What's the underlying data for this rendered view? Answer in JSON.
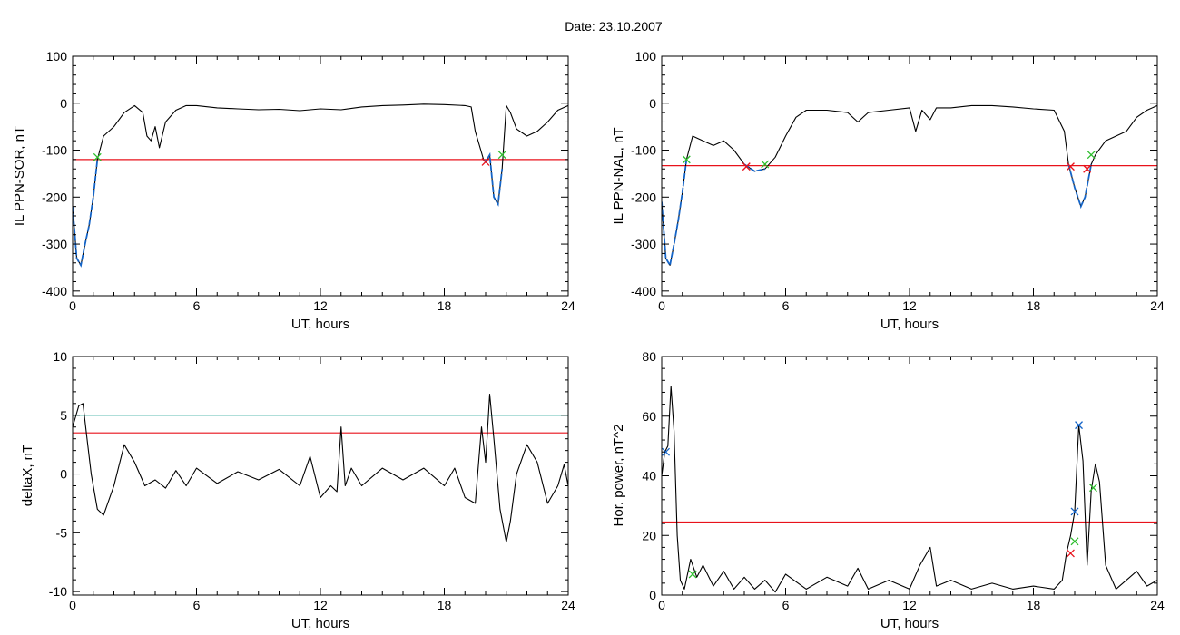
{
  "figure": {
    "title": "Date:  23.10.2007"
  },
  "colors": {
    "signal": "#000000",
    "threshold": "#e8121b",
    "threshold2": "#2aa79a",
    "highlight": "#1565c8",
    "onset_marker": "#e8121b",
    "end_marker": "#2cbd2c",
    "peak_marker": "#1565c8"
  },
  "chart_data": [
    {
      "id": "il-ppn-sor",
      "type": "line",
      "xlabel": "UT, hours",
      "ylabel": "IL PPN-SOR, nT",
      "xlim": [
        0,
        24
      ],
      "ylim": [
        -410,
        100
      ],
      "xticks": [
        0,
        6,
        12,
        18,
        24
      ],
      "yticks": [
        100,
        0,
        -100,
        -200,
        -300,
        -400
      ],
      "thresholds": [
        {
          "y": -120,
          "color": "#e8121b"
        }
      ],
      "series": [
        {
          "points": [
            [
              0,
              -220
            ],
            [
              0.2,
              -330
            ],
            [
              0.4,
              -345
            ],
            [
              0.6,
              -300
            ],
            [
              0.8,
              -260
            ],
            [
              1.0,
              -200
            ],
            [
              1.2,
              -120
            ],
            [
              1.5,
              -70
            ],
            [
              2.0,
              -50
            ],
            [
              2.5,
              -20
            ],
            [
              3.0,
              -5
            ],
            [
              3.4,
              -20
            ],
            [
              3.6,
              -70
            ],
            [
              3.8,
              -80
            ],
            [
              4.0,
              -50
            ],
            [
              4.2,
              -95
            ],
            [
              4.5,
              -40
            ],
            [
              5.0,
              -15
            ],
            [
              5.5,
              -5
            ],
            [
              6,
              -5
            ],
            [
              7,
              -10
            ],
            [
              8,
              -12
            ],
            [
              9,
              -14
            ],
            [
              10,
              -13
            ],
            [
              11,
              -16
            ],
            [
              12,
              -12
            ],
            [
              13,
              -14
            ],
            [
              14,
              -8
            ],
            [
              15,
              -5
            ],
            [
              16,
              -4
            ],
            [
              17,
              -2
            ],
            [
              18,
              -3
            ],
            [
              19,
              -5
            ],
            [
              19.3,
              -8
            ],
            [
              19.5,
              -60
            ],
            [
              19.7,
              -90
            ],
            [
              19.9,
              -120
            ],
            [
              20.0,
              -125
            ],
            [
              20.2,
              -110
            ],
            [
              20.4,
              -200
            ],
            [
              20.6,
              -215
            ],
            [
              20.8,
              -140
            ],
            [
              21.0,
              -5
            ],
            [
              21.2,
              -20
            ],
            [
              21.5,
              -55
            ],
            [
              22.0,
              -70
            ],
            [
              22.5,
              -60
            ],
            [
              23.0,
              -40
            ],
            [
              23.5,
              -15
            ],
            [
              24,
              -5
            ]
          ]
        }
      ],
      "highlight": [
        {
          "points": [
            [
              0,
              -220
            ],
            [
              0.2,
              -330
            ],
            [
              0.4,
              -345
            ],
            [
              0.6,
              -300
            ],
            [
              0.8,
              -260
            ],
            [
              1.0,
              -200
            ],
            [
              1.2,
              -120
            ]
          ]
        },
        {
          "points": [
            [
              19.9,
              -120
            ],
            [
              20.0,
              -125
            ],
            [
              20.2,
              -110
            ],
            [
              20.4,
              -200
            ],
            [
              20.6,
              -215
            ],
            [
              20.8,
              -140
            ]
          ]
        }
      ],
      "markers": [
        {
          "x": 1.2,
          "y": -115,
          "color": "#2cbd2c"
        },
        {
          "x": 20.0,
          "y": -125,
          "color": "#e8121b"
        },
        {
          "x": 20.8,
          "y": -110,
          "color": "#2cbd2c"
        }
      ]
    },
    {
      "id": "il-ppn-nal",
      "type": "line",
      "xlabel": "UT, hours",
      "ylabel": "IL PPN-NAL, nT",
      "xlim": [
        0,
        24
      ],
      "ylim": [
        -410,
        100
      ],
      "xticks": [
        0,
        6,
        12,
        18,
        24
      ],
      "yticks": [
        100,
        0,
        -100,
        -200,
        -300,
        -400
      ],
      "thresholds": [
        {
          "y": -133,
          "color": "#e8121b"
        }
      ],
      "series": [
        {
          "points": [
            [
              0,
              -210
            ],
            [
              0.2,
              -330
            ],
            [
              0.4,
              -345
            ],
            [
              0.6,
              -300
            ],
            [
              0.8,
              -250
            ],
            [
              1.0,
              -190
            ],
            [
              1.2,
              -120
            ],
            [
              1.5,
              -70
            ],
            [
              2.0,
              -80
            ],
            [
              2.5,
              -90
            ],
            [
              3.0,
              -80
            ],
            [
              3.5,
              -100
            ],
            [
              4.0,
              -130
            ],
            [
              4.5,
              -145
            ],
            [
              5.0,
              -140
            ],
            [
              5.5,
              -115
            ],
            [
              6.0,
              -70
            ],
            [
              6.5,
              -30
            ],
            [
              7,
              -15
            ],
            [
              8,
              -15
            ],
            [
              9,
              -20
            ],
            [
              9.5,
              -40
            ],
            [
              10,
              -20
            ],
            [
              11,
              -15
            ],
            [
              12,
              -10
            ],
            [
              12.3,
              -60
            ],
            [
              12.6,
              -15
            ],
            [
              13,
              -35
            ],
            [
              13.3,
              -10
            ],
            [
              14,
              -10
            ],
            [
              15,
              -5
            ],
            [
              16,
              -5
            ],
            [
              17,
              -8
            ],
            [
              18,
              -12
            ],
            [
              19,
              -15
            ],
            [
              19.5,
              -60
            ],
            [
              19.7,
              -130
            ],
            [
              20.0,
              -180
            ],
            [
              20.3,
              -220
            ],
            [
              20.5,
              -200
            ],
            [
              20.8,
              -130
            ],
            [
              21.0,
              -110
            ],
            [
              21.5,
              -80
            ],
            [
              22.0,
              -70
            ],
            [
              22.5,
              -60
            ],
            [
              23.0,
              -30
            ],
            [
              23.5,
              -15
            ],
            [
              24,
              -5
            ]
          ]
        }
      ],
      "highlight": [
        {
          "points": [
            [
              0,
              -210
            ],
            [
              0.2,
              -330
            ],
            [
              0.4,
              -345
            ],
            [
              0.6,
              -300
            ],
            [
              0.8,
              -250
            ],
            [
              1.0,
              -190
            ],
            [
              1.2,
              -120
            ]
          ]
        },
        {
          "points": [
            [
              4.0,
              -130
            ],
            [
              4.5,
              -145
            ],
            [
              5.0,
              -140
            ]
          ]
        },
        {
          "points": [
            [
              19.7,
              -130
            ],
            [
              20.0,
              -180
            ],
            [
              20.3,
              -220
            ],
            [
              20.5,
              -200
            ],
            [
              20.8,
              -130
            ]
          ]
        }
      ],
      "markers": [
        {
          "x": 1.2,
          "y": -120,
          "color": "#2cbd2c"
        },
        {
          "x": 4.1,
          "y": -135,
          "color": "#e8121b"
        },
        {
          "x": 5.0,
          "y": -130,
          "color": "#2cbd2c"
        },
        {
          "x": 19.8,
          "y": -135,
          "color": "#e8121b"
        },
        {
          "x": 20.6,
          "y": -140,
          "color": "#e8121b"
        },
        {
          "x": 20.8,
          "y": -110,
          "color": "#2cbd2c"
        }
      ]
    },
    {
      "id": "deltax",
      "type": "line",
      "xlabel": "UT, hours",
      "ylabel": "deltaX, nT",
      "xlim": [
        0,
        24
      ],
      "ylim": [
        -10.3,
        10
      ],
      "xticks": [
        0,
        6,
        12,
        18,
        24
      ],
      "yticks": [
        10,
        5,
        0,
        -5,
        -10
      ],
      "thresholds": [
        {
          "y": 5.0,
          "color": "#2aa79a"
        },
        {
          "y": 3.5,
          "color": "#e8121b"
        }
      ],
      "series": [
        {
          "points": [
            [
              0,
              4
            ],
            [
              0.3,
              5.8
            ],
            [
              0.5,
              6
            ],
            [
              0.7,
              3
            ],
            [
              0.9,
              0
            ],
            [
              1.2,
              -3
            ],
            [
              1.5,
              -3.5
            ],
            [
              2.0,
              -1
            ],
            [
              2.5,
              2.5
            ],
            [
              3.0,
              1
            ],
            [
              3.5,
              -1
            ],
            [
              4.0,
              -0.5
            ],
            [
              4.5,
              -1.2
            ],
            [
              5.0,
              0.3
            ],
            [
              5.5,
              -1
            ],
            [
              6.0,
              0.5
            ],
            [
              7,
              -0.8
            ],
            [
              8,
              0.2
            ],
            [
              9,
              -0.5
            ],
            [
              10,
              0.4
            ],
            [
              11,
              -1
            ],
            [
              11.5,
              1.5
            ],
            [
              12,
              -2
            ],
            [
              12.5,
              -1
            ],
            [
              12.8,
              -1.5
            ],
            [
              13.0,
              4
            ],
            [
              13.2,
              -1
            ],
            [
              13.5,
              0.5
            ],
            [
              14,
              -1
            ],
            [
              15,
              0.5
            ],
            [
              16,
              -0.5
            ],
            [
              17,
              0.5
            ],
            [
              18,
              -1
            ],
            [
              18.5,
              0.5
            ],
            [
              19,
              -2
            ],
            [
              19.5,
              -2.5
            ],
            [
              19.8,
              4
            ],
            [
              20.0,
              1
            ],
            [
              20.2,
              6.8
            ],
            [
              20.4,
              3
            ],
            [
              20.7,
              -3
            ],
            [
              21.0,
              -5.8
            ],
            [
              21.2,
              -4
            ],
            [
              21.5,
              0
            ],
            [
              22.0,
              2.5
            ],
            [
              22.5,
              1
            ],
            [
              23.0,
              -2.5
            ],
            [
              23.5,
              -1
            ],
            [
              23.8,
              0.8
            ],
            [
              24,
              -1
            ]
          ]
        }
      ],
      "highlight": [],
      "markers": []
    },
    {
      "id": "hor-power",
      "type": "line",
      "xlabel": "UT, hours",
      "ylabel": "Hor. power, nT^2",
      "xlim": [
        0,
        24
      ],
      "ylim": [
        0,
        80
      ],
      "xticks": [
        0,
        6,
        12,
        18,
        24
      ],
      "yticks": [
        80,
        60,
        40,
        20,
        0
      ],
      "thresholds": [
        {
          "y": 24.5,
          "color": "#e8121b"
        }
      ],
      "series": [
        {
          "points": [
            [
              0,
              40
            ],
            [
              0.15,
              48
            ],
            [
              0.3,
              50
            ],
            [
              0.45,
              70
            ],
            [
              0.6,
              55
            ],
            [
              0.75,
              20
            ],
            [
              0.9,
              5
            ],
            [
              1.1,
              2
            ],
            [
              1.4,
              12
            ],
            [
              1.7,
              6
            ],
            [
              2.0,
              10
            ],
            [
              2.5,
              3
            ],
            [
              3.0,
              8
            ],
            [
              3.5,
              2
            ],
            [
              4.0,
              6
            ],
            [
              4.5,
              2
            ],
            [
              5.0,
              5
            ],
            [
              5.5,
              1
            ],
            [
              6.0,
              7
            ],
            [
              7,
              2
            ],
            [
              8,
              6
            ],
            [
              9,
              3
            ],
            [
              9.5,
              9
            ],
            [
              10,
              2
            ],
            [
              11,
              5
            ],
            [
              12,
              2
            ],
            [
              12.5,
              10
            ],
            [
              13.0,
              16
            ],
            [
              13.3,
              3
            ],
            [
              14,
              5
            ],
            [
              15,
              2
            ],
            [
              16,
              4
            ],
            [
              17,
              2
            ],
            [
              18,
              3
            ],
            [
              19,
              2
            ],
            [
              19.4,
              5
            ],
            [
              19.6,
              14
            ],
            [
              19.8,
              20
            ],
            [
              20.0,
              28
            ],
            [
              20.2,
              57
            ],
            [
              20.4,
              45
            ],
            [
              20.6,
              10
            ],
            [
              20.8,
              35
            ],
            [
              21.0,
              44
            ],
            [
              21.2,
              38
            ],
            [
              21.5,
              10
            ],
            [
              22.0,
              2
            ],
            [
              22.5,
              5
            ],
            [
              23.0,
              8
            ],
            [
              23.5,
              3
            ],
            [
              24,
              5
            ]
          ]
        }
      ],
      "highlight": [],
      "markers": [
        {
          "x": 0.2,
          "y": 48,
          "color": "#1565c8"
        },
        {
          "x": 1.5,
          "y": 7,
          "color": "#2cbd2c"
        },
        {
          "x": 19.8,
          "y": 14,
          "color": "#e8121b"
        },
        {
          "x": 20.0,
          "y": 18,
          "color": "#2cbd2c"
        },
        {
          "x": 20.0,
          "y": 28,
          "color": "#1565c8"
        },
        {
          "x": 20.2,
          "y": 57,
          "color": "#1565c8"
        },
        {
          "x": 20.9,
          "y": 36,
          "color": "#2cbd2c"
        }
      ]
    }
  ]
}
